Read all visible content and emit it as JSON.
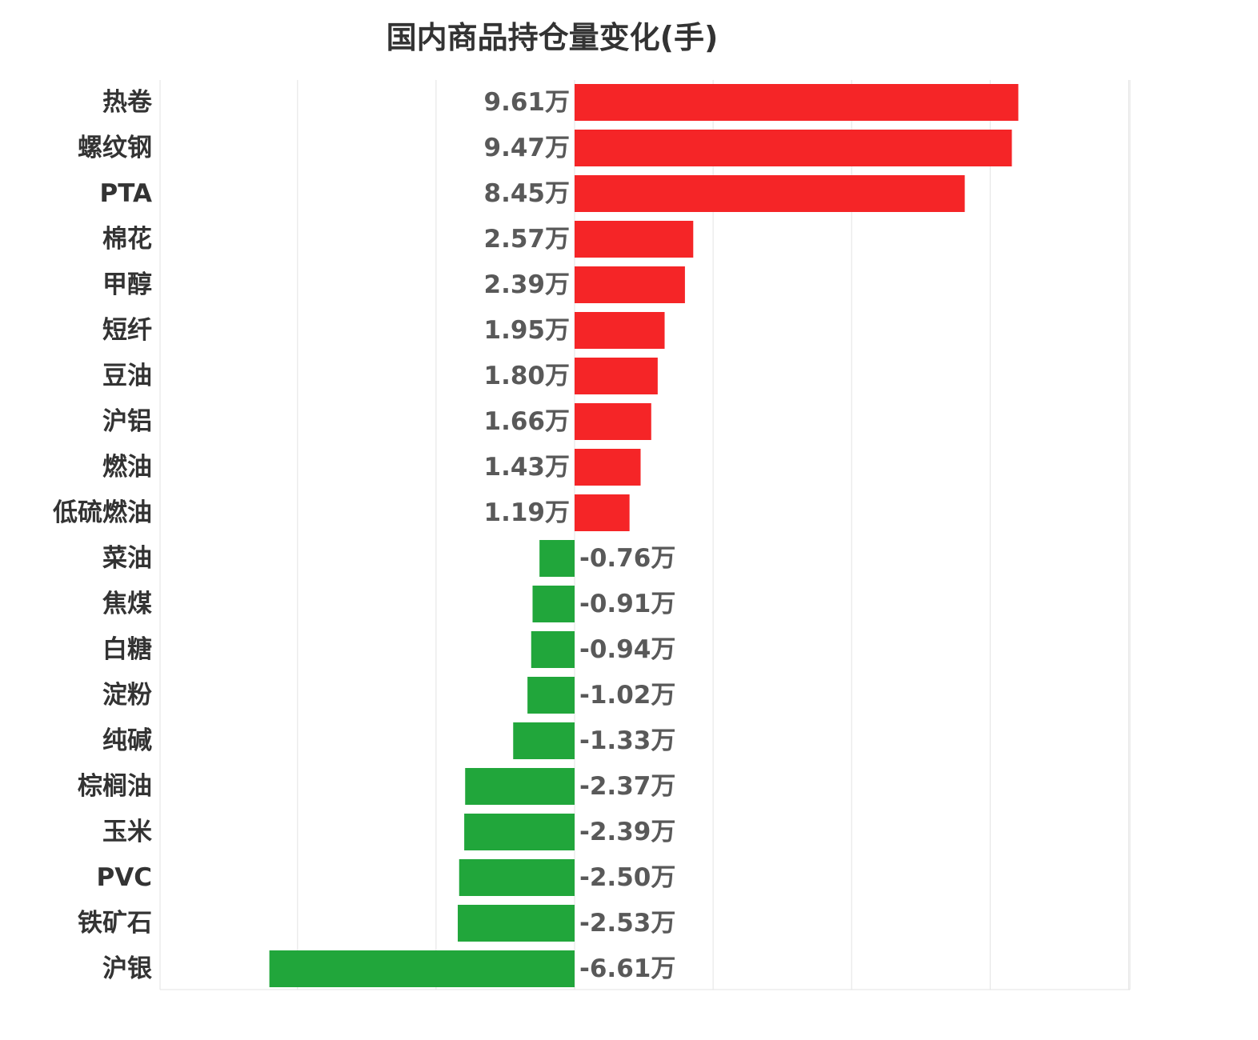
{
  "chart_data": {
    "type": "bar",
    "orientation": "horizontal",
    "title": "国内商品持仓量变化(手)",
    "xlabel": "",
    "ylabel": "",
    "value_suffix": "万",
    "xlim": [
      -9,
      12
    ],
    "grid": true,
    "categories": [
      "热卷",
      "螺纹钢",
      "PTA",
      "棉花",
      "甲醇",
      "短纤",
      "豆油",
      "沪铝",
      "燃油",
      "低硫燃油",
      "菜油",
      "焦煤",
      "白糖",
      "淀粉",
      "纯碱",
      "棕榈油",
      "玉米",
      "PVC",
      "铁矿石",
      "沪银"
    ],
    "values": [
      9.61,
      9.47,
      8.45,
      2.57,
      2.39,
      1.95,
      1.8,
      1.66,
      1.43,
      1.19,
      -0.76,
      -0.91,
      -0.94,
      -1.02,
      -1.33,
      -2.37,
      -2.39,
      -2.5,
      -2.53,
      -6.61
    ],
    "value_labels": [
      "9.61万",
      "9.47万",
      "8.45万",
      "2.57万",
      "2.39万",
      "1.95万",
      "1.80万",
      "1.66万",
      "1.43万",
      "1.19万",
      "-0.76万",
      "-0.91万",
      "-0.94万",
      "-1.02万",
      "-1.33万",
      "-2.37万",
      "-2.39万",
      "-2.50万",
      "-2.53万",
      "-6.61万"
    ],
    "colors": {
      "positive": "#f52527",
      "negative": "#21a63b",
      "grid": "#e3e3e3"
    }
  }
}
